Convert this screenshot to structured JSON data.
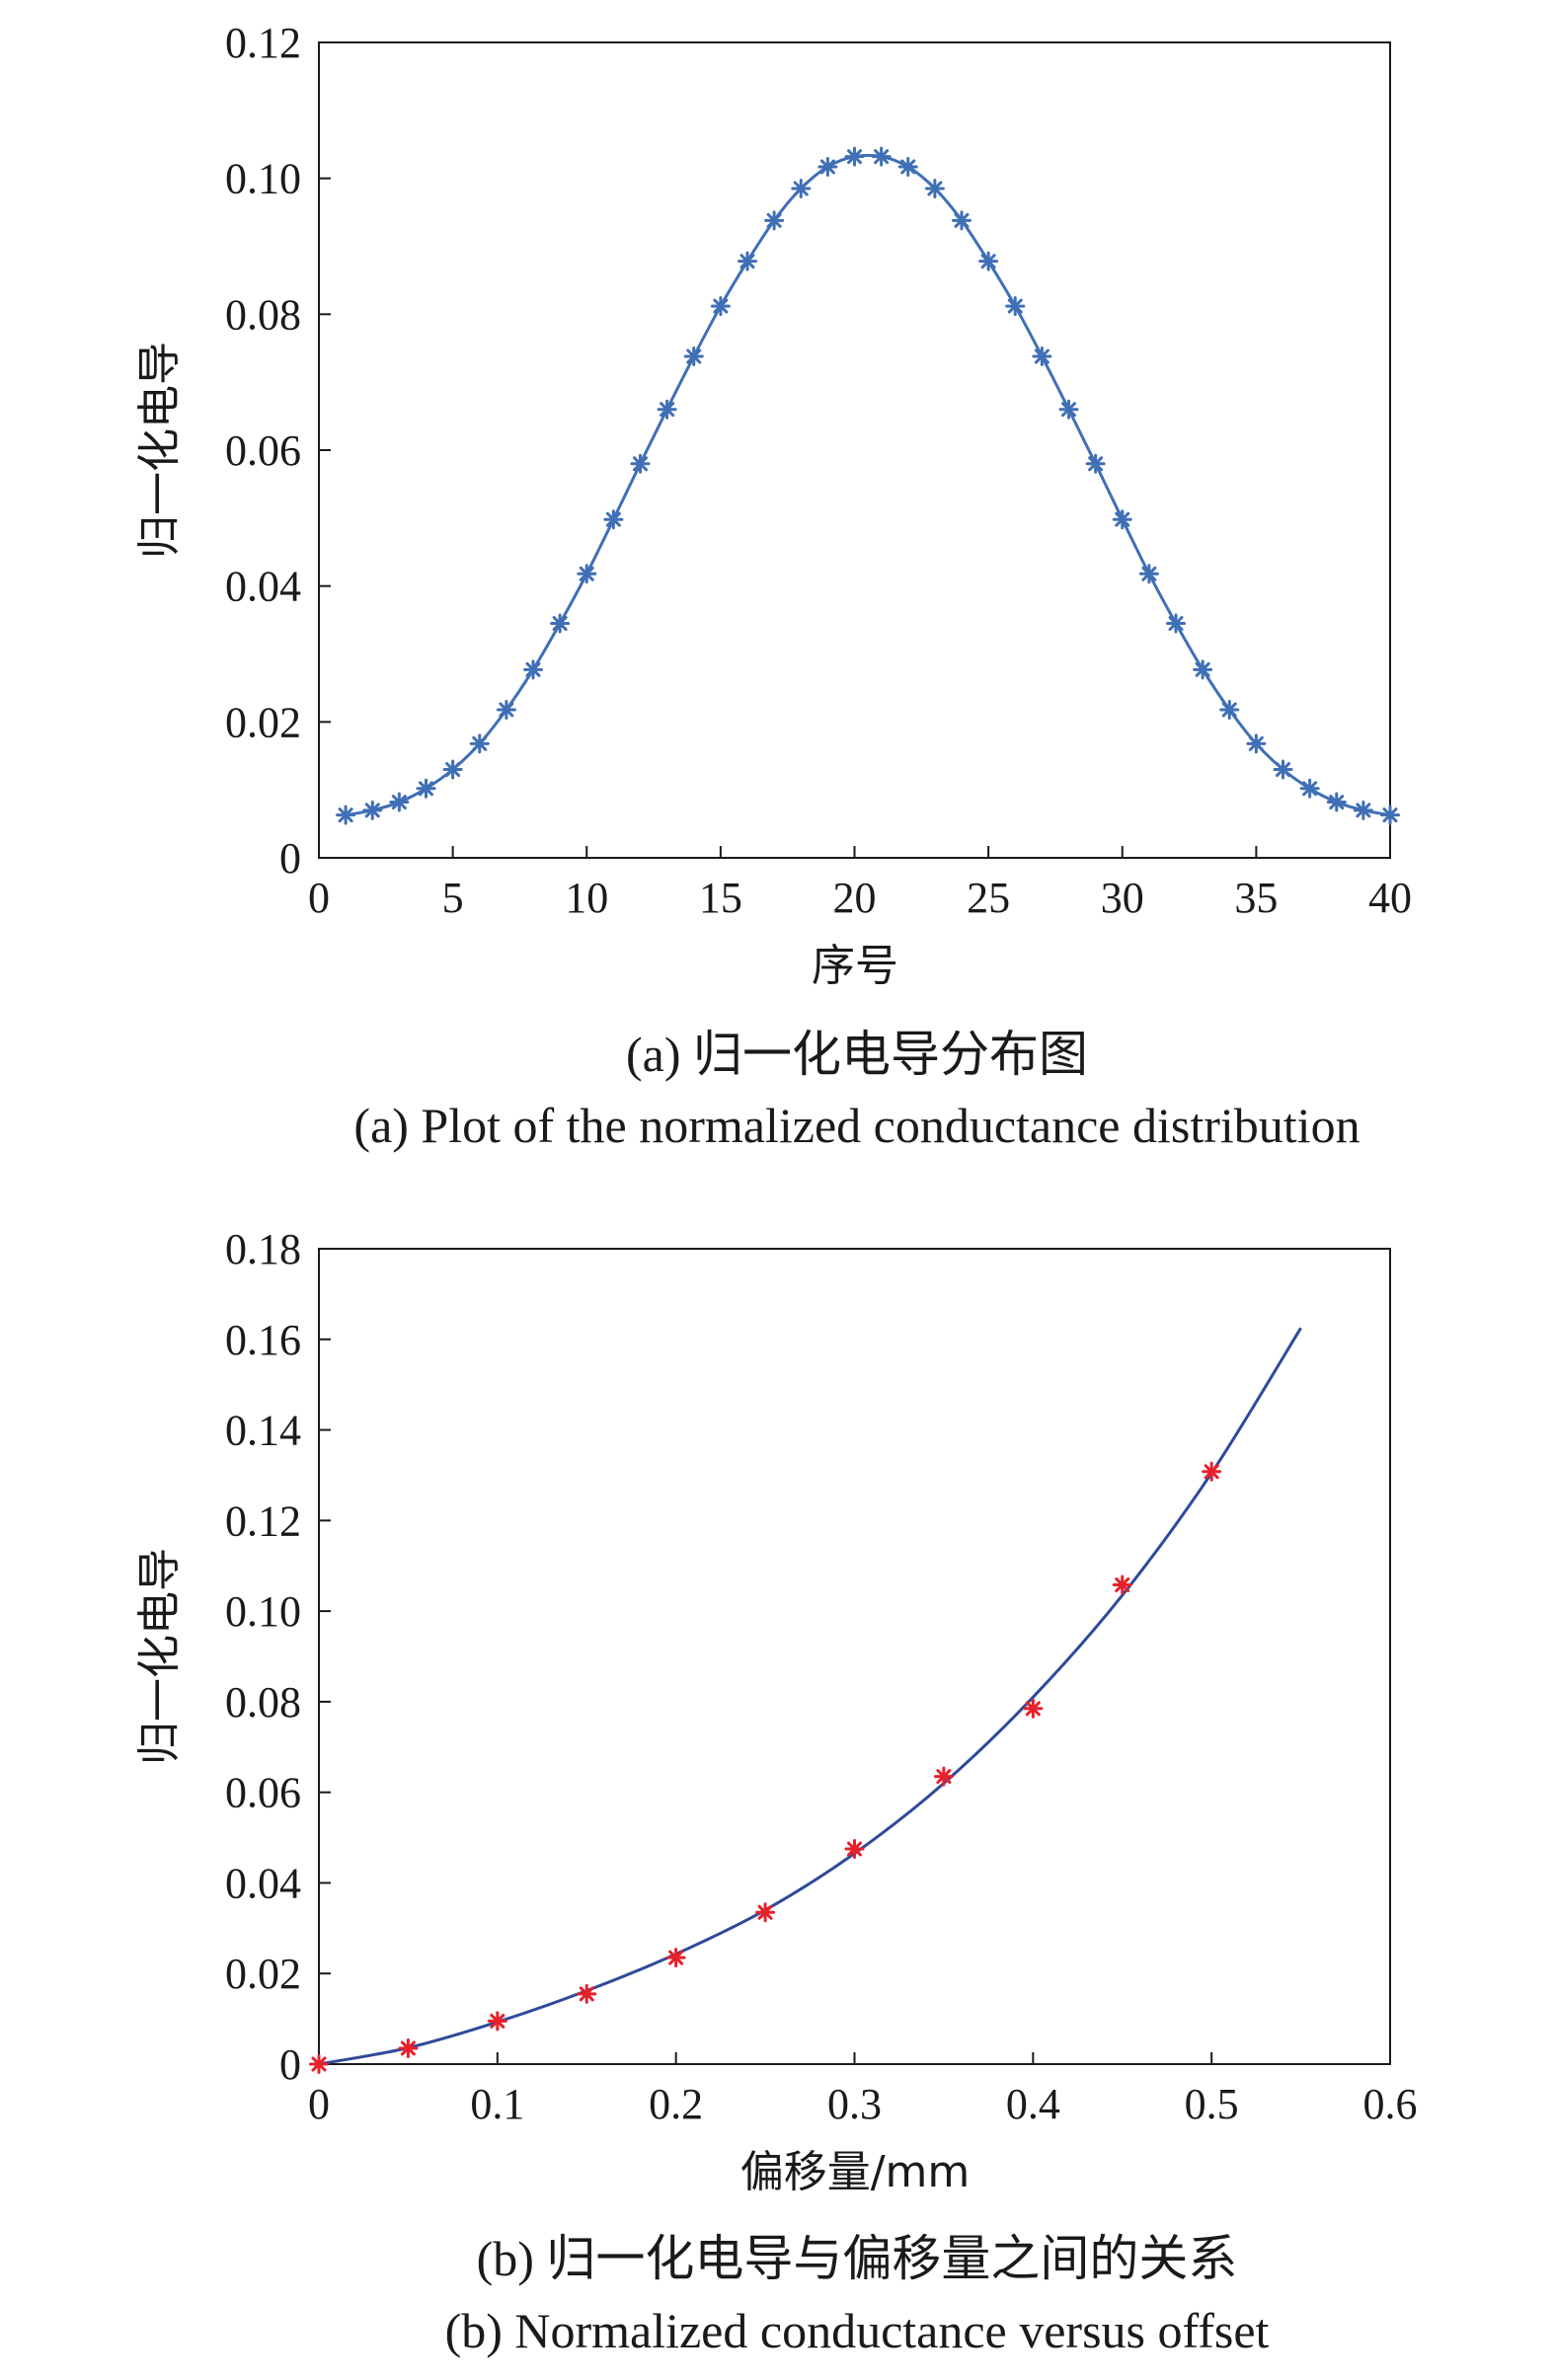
{
  "figure": {
    "caption_a_cn": "(a) 归一化电导分布图",
    "caption_a_en": "(a) Plot of the normalized conductance distribution",
    "caption_b_cn": "(b) 归一化电导与偏移量之间的关系",
    "caption_b_en": "(b) Normalized conductance versus offset"
  },
  "chart_data": [
    {
      "type": "line",
      "xlabel": "序号",
      "ylabel": "归一化电导",
      "xlim": [
        0,
        40
      ],
      "ylim": [
        0,
        0.12
      ],
      "xticks": [
        0,
        5,
        10,
        15,
        20,
        25,
        30,
        35,
        40
      ],
      "yticks": [
        0,
        0.02,
        0.04,
        0.06,
        0.08,
        0.1,
        0.12
      ],
      "ytick_labels": [
        "0",
        "0.02",
        "0.04",
        "0.06",
        "0.08",
        "0.10",
        "0.12"
      ],
      "grid": false,
      "line_color": "#3f6fb5",
      "marker": "asterisk",
      "marker_color": "#3f6fb5",
      "x": [
        1,
        2,
        3,
        4,
        5,
        6,
        7,
        8,
        9,
        10,
        11,
        12,
        13,
        14,
        15,
        16,
        17,
        18,
        19,
        20,
        21,
        22,
        23,
        24,
        25,
        26,
        27,
        28,
        29,
        30,
        31,
        32,
        33,
        34,
        35,
        36,
        37,
        38,
        39,
        40
      ],
      "y": [
        0.0063,
        0.007,
        0.0082,
        0.0102,
        0.013,
        0.0168,
        0.0218,
        0.0277,
        0.0345,
        0.0418,
        0.0498,
        0.058,
        0.066,
        0.0738,
        0.0812,
        0.0878,
        0.0938,
        0.0985,
        0.1017,
        0.1032,
        0.1032,
        0.1017,
        0.0985,
        0.0938,
        0.0878,
        0.0812,
        0.0738,
        0.066,
        0.058,
        0.0498,
        0.0418,
        0.0345,
        0.0277,
        0.0218,
        0.0168,
        0.013,
        0.0102,
        0.0082,
        0.007,
        0.0063
      ]
    },
    {
      "type": "scatter",
      "xlabel": "偏移量/mm",
      "ylabel": "归一化电导",
      "xlim": [
        0,
        0.6
      ],
      "ylim": [
        0,
        0.18
      ],
      "xticks": [
        0,
        0.1,
        0.2,
        0.3,
        0.4,
        0.5,
        0.6
      ],
      "xtick_labels": [
        "0",
        "0.1",
        "0.2",
        "0.3",
        "0.4",
        "0.5",
        "0.6"
      ],
      "yticks": [
        0,
        0.02,
        0.04,
        0.06,
        0.08,
        0.1,
        0.12,
        0.14,
        0.16,
        0.18
      ],
      "ytick_labels": [
        "0",
        "0.02",
        "0.04",
        "0.06",
        "0.08",
        "0.10",
        "0.12",
        "0.14",
        "0.16",
        "0.18"
      ],
      "grid": false,
      "marker": "asterisk",
      "marker_color": "#e8202a",
      "points_x": [
        0,
        0.05,
        0.1,
        0.15,
        0.2,
        0.25,
        0.3,
        0.35,
        0.4,
        0.45,
        0.5
      ],
      "points_y": [
        0.0,
        0.0035,
        0.0095,
        0.0155,
        0.0235,
        0.0335,
        0.0475,
        0.0635,
        0.0785,
        0.1058,
        0.1308
      ],
      "fit_color": "#2f4a9a",
      "fit_x": [
        0,
        0.05,
        0.1,
        0.15,
        0.2,
        0.25,
        0.3,
        0.35,
        0.4,
        0.45,
        0.5,
        0.55
      ],
      "fit_y": [
        0.0,
        0.0036,
        0.0093,
        0.0162,
        0.0243,
        0.034,
        0.0465,
        0.062,
        0.081,
        0.1035,
        0.1305,
        0.1625
      ]
    }
  ]
}
